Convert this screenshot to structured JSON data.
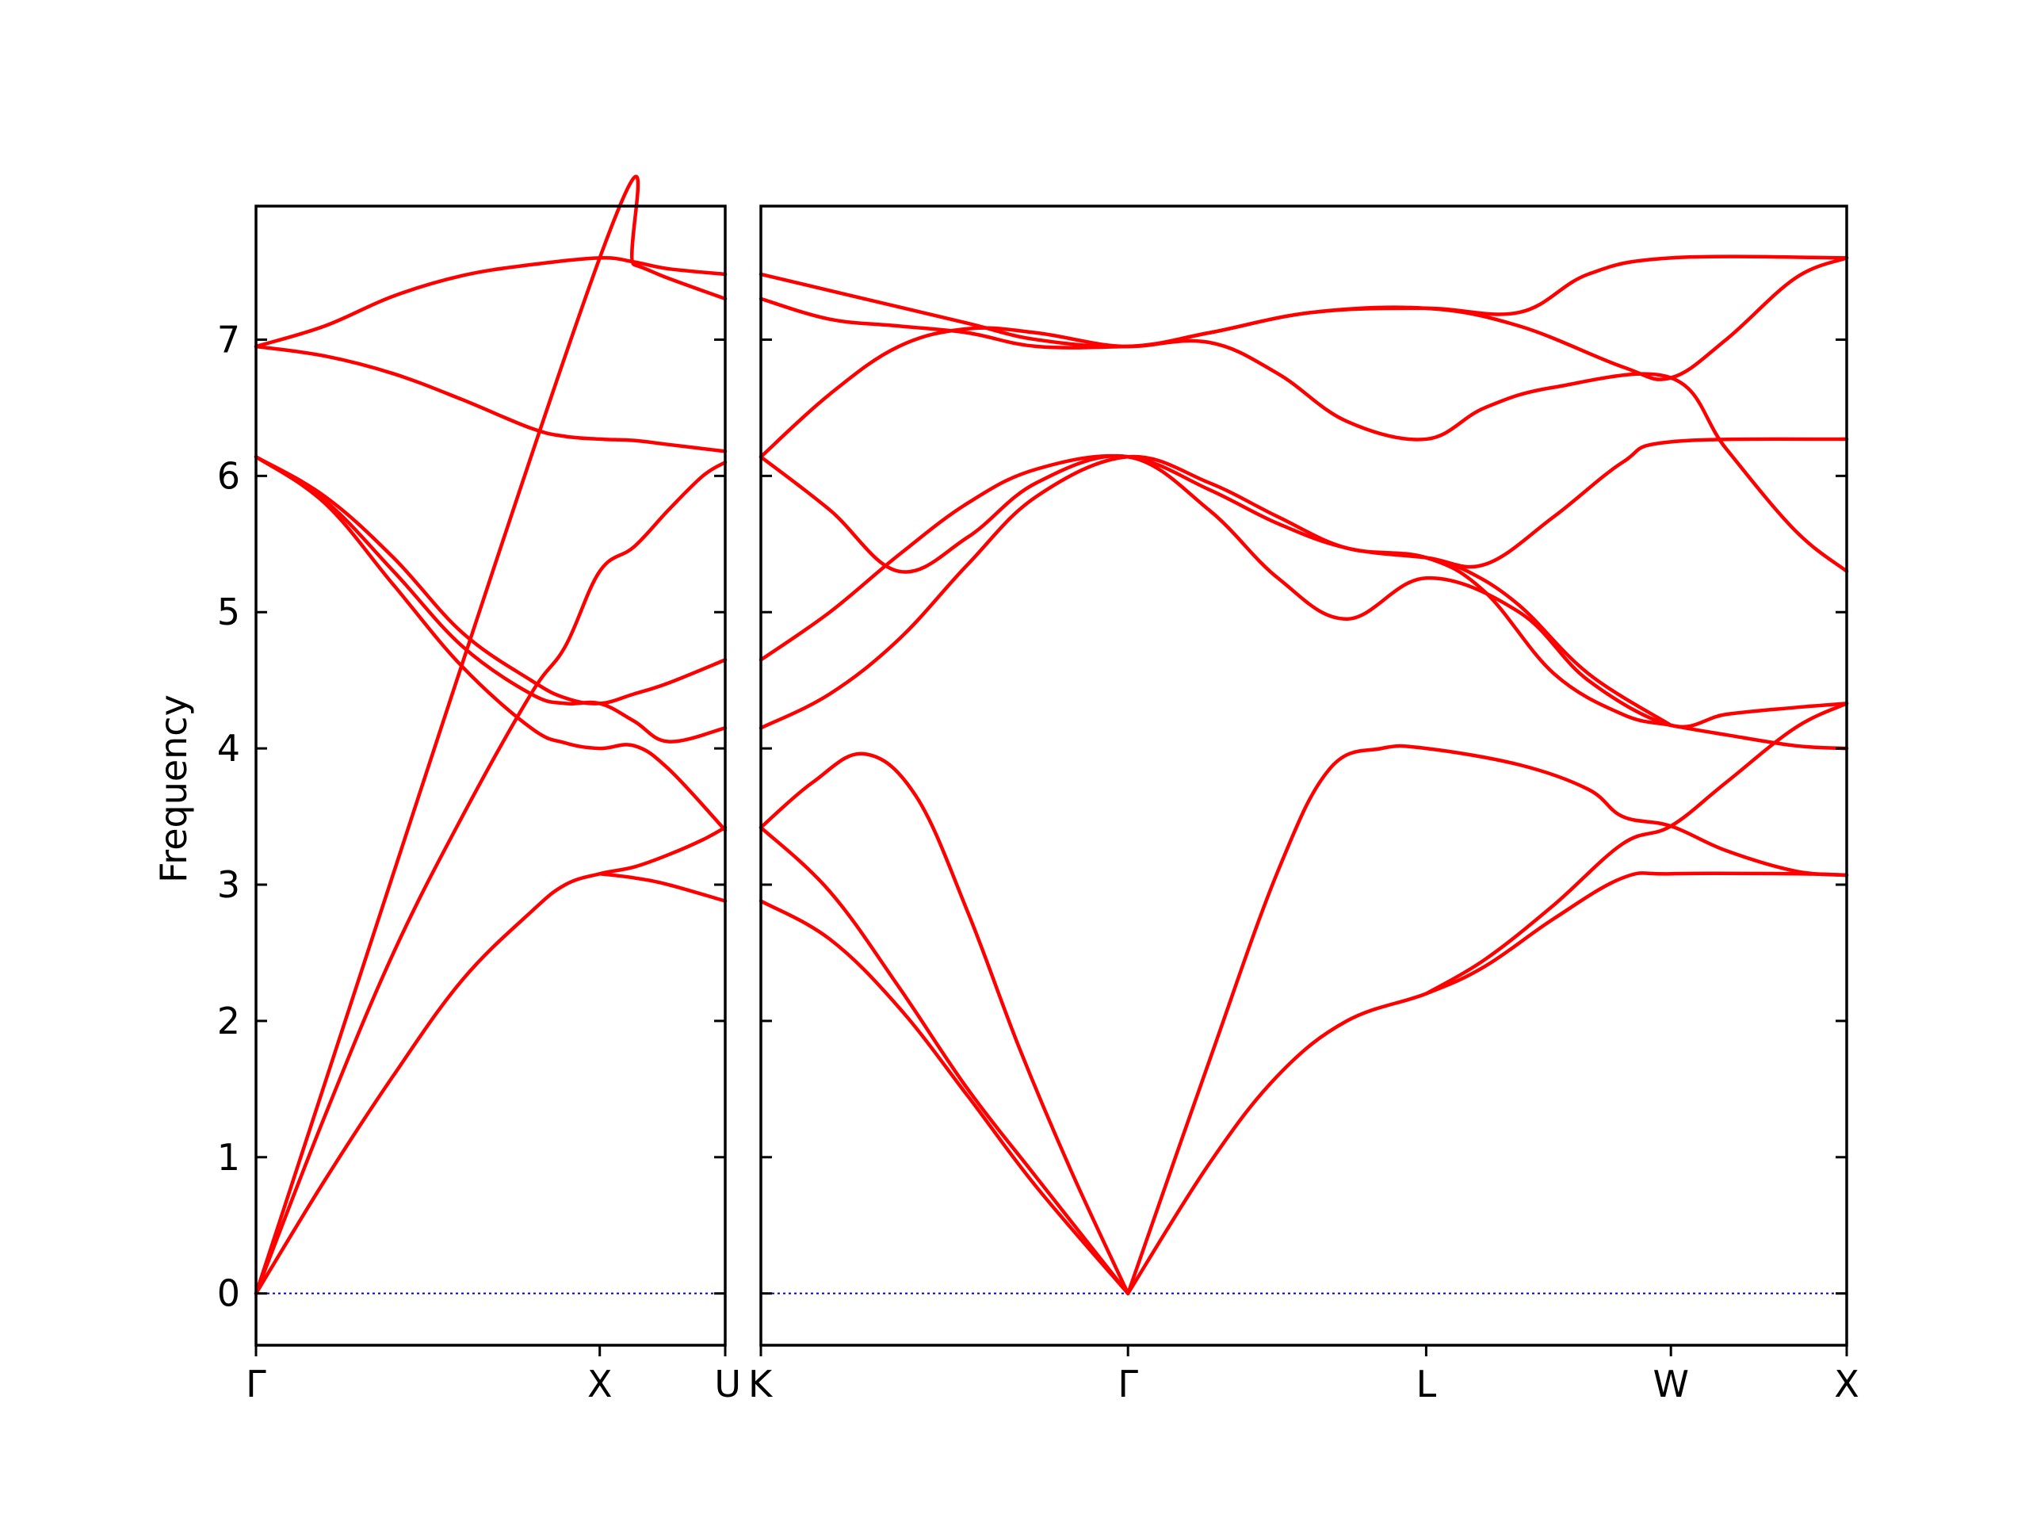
{
  "chart_data": {
    "type": "line",
    "title": "",
    "ylabel": "Frequency",
    "ylim": [
      -0.38,
      7.98
    ],
    "yticks": [
      0,
      1,
      2,
      3,
      4,
      5,
      6,
      7
    ],
    "grid": false,
    "colors": {
      "band": "#ff0000",
      "zero_line": "#0000cc"
    },
    "segments": [
      {
        "xlim": [
          0,
          1.365
        ],
        "xticks": [
          {
            "pos": 0,
            "label": "Γ"
          },
          {
            "pos": 1,
            "label": "X"
          },
          {
            "pos": 1.365,
            "label": "U"
          }
        ],
        "bands": [
          [
            [
              0,
              0
            ],
            [
              0.2,
              1.3
            ],
            [
              0.4,
              2.5
            ],
            [
              0.6,
              3.5
            ],
            [
              0.8,
              4.4
            ],
            [
              0.9,
              4.75
            ],
            [
              1,
              5.3
            ],
            [
              1.1,
              5.48
            ],
            [
              1.2,
              5.75
            ],
            [
              1.3,
              6.0
            ],
            [
              1.365,
              6.1
            ]
          ],
          [
            [
              0,
              0
            ],
            [
              0.2,
              0.83
            ],
            [
              0.4,
              1.6
            ],
            [
              0.6,
              2.3
            ],
            [
              0.8,
              2.8
            ],
            [
              0.9,
              3.0
            ],
            [
              1,
              3.08
            ],
            [
              1.1,
              3.13
            ],
            [
              1.2,
              3.22
            ],
            [
              1.3,
              3.33
            ],
            [
              1.365,
              3.42
            ]
          ],
          [
            [
              0,
              6.95
            ],
            [
              0.2,
              7.1
            ],
            [
              0.4,
              7.32
            ],
            [
              0.6,
              7.47
            ],
            [
              0.8,
              7.55
            ],
            [
              1,
              7.6
            ],
            [
              1.1,
              7.57
            ],
            [
              1.2,
              7.52
            ],
            [
              1.365,
              7.48
            ]
          ],
          [
            [
              0,
              6.95
            ],
            [
              0.2,
              6.88
            ],
            [
              0.4,
              6.75
            ],
            [
              0.6,
              6.56
            ],
            [
              0.8,
              6.35
            ],
            [
              0.9,
              6.29
            ],
            [
              1,
              6.27
            ],
            [
              1.1,
              6.26
            ],
            [
              1.2,
              6.23
            ],
            [
              1.365,
              6.18
            ]
          ],
          [
            [
              0,
              6.14
            ],
            [
              0.2,
              5.85
            ],
            [
              0.4,
              5.4
            ],
            [
              0.6,
              4.85
            ],
            [
              0.8,
              4.5
            ],
            [
              0.9,
              4.37
            ],
            [
              1,
              4.33
            ],
            [
              1.1,
              4.4
            ],
            [
              1.2,
              4.48
            ],
            [
              1.365,
              4.65
            ]
          ],
          [
            [
              0,
              6.14
            ],
            [
              0.2,
              5.8
            ],
            [
              0.4,
              5.2
            ],
            [
              0.6,
              4.6
            ],
            [
              0.8,
              4.15
            ],
            [
              0.9,
              4.04
            ],
            [
              1,
              4.0
            ],
            [
              1.1,
              4.02
            ],
            [
              1.2,
              3.85
            ],
            [
              1.365,
              3.4
            ]
          ],
          [
            [
              0,
              6.14
            ],
            [
              0.2,
              5.82
            ],
            [
              0.4,
              5.3
            ],
            [
              0.6,
              4.75
            ],
            [
              0.8,
              4.4
            ],
            [
              0.9,
              4.33
            ],
            [
              1,
              4.33
            ],
            [
              1.1,
              4.2
            ],
            [
              1.2,
              4.05
            ],
            [
              1.365,
              4.15
            ]
          ],
          [
            [
              0,
              0
            ],
            [
              1,
              7.6
            ],
            [
              1.1,
              7.55
            ],
            [
              1.2,
              7.45
            ],
            [
              1.365,
              7.3
            ]
          ],
          [
            [
              1,
              3.08
            ],
            [
              1.1,
              3.05
            ],
            [
              1.2,
              3.0
            ],
            [
              1.365,
              2.88
            ]
          ]
        ],
        "zero_line": true
      },
      {
        "xlim": [
          0,
          3.15
        ],
        "xticks": [
          {
            "pos": 0,
            "label": "K"
          },
          {
            "pos": 1.065,
            "label": "Γ"
          },
          {
            "pos": 1.93,
            "label": "L"
          },
          {
            "pos": 2.64,
            "label": "W"
          },
          {
            "pos": 3.15,
            "label": "X"
          }
        ],
        "bands": [
          [
            [
              0,
              3.42
            ],
            [
              0.15,
              3.75
            ],
            [
              0.3,
              3.96
            ],
            [
              0.45,
              3.65
            ],
            [
              0.6,
              2.8
            ],
            [
              0.75,
              1.8
            ],
            [
              0.9,
              0.9
            ],
            [
              1.065,
              0
            ]
          ],
          [
            [
              0,
              3.42
            ],
            [
              0.2,
              2.95
            ],
            [
              0.4,
              2.25
            ],
            [
              0.6,
              1.5
            ],
            [
              0.8,
              0.85
            ],
            [
              1.065,
              0
            ]
          ],
          [
            [
              0,
              2.88
            ],
            [
              0.2,
              2.6
            ],
            [
              0.4,
              2.1
            ],
            [
              0.6,
              1.45
            ],
            [
              0.8,
              0.78
            ],
            [
              1.065,
              0
            ]
          ],
          [
            [
              1.065,
              0
            ],
            [
              1.3,
              1.7
            ],
            [
              1.5,
              3.1
            ],
            [
              1.65,
              3.85
            ],
            [
              1.8,
              4.0
            ],
            [
              1.93,
              4.0
            ],
            [
              2.2,
              3.88
            ],
            [
              2.4,
              3.7
            ],
            [
              2.5,
              3.5
            ],
            [
              2.64,
              3.43
            ],
            [
              2.8,
              3.25
            ],
            [
              3.0,
              3.1
            ],
            [
              3.15,
              3.07
            ]
          ],
          [
            [
              1.065,
              0
            ],
            [
              1.3,
              0.95
            ],
            [
              1.5,
              1.6
            ],
            [
              1.7,
              2.0
            ],
            [
              1.93,
              2.2
            ],
            [
              2.1,
              2.4
            ],
            [
              2.3,
              2.75
            ],
            [
              2.5,
              3.05
            ],
            [
              2.64,
              3.08
            ],
            [
              3.0,
              3.08
            ],
            [
              3.15,
              3.07
            ]
          ],
          [
            [
              1.93,
              2.2
            ],
            [
              2.1,
              2.45
            ],
            [
              2.3,
              2.85
            ],
            [
              2.5,
              3.3
            ],
            [
              2.64,
              3.43
            ],
            [
              2.8,
              3.75
            ],
            [
              3.0,
              4.15
            ],
            [
              3.15,
              4.33
            ]
          ],
          [
            [
              0,
              6.14
            ],
            [
              0.2,
              6.6
            ],
            [
              0.4,
              6.95
            ],
            [
              0.6,
              7.08
            ],
            [
              0.8,
              7.05
            ],
            [
              1.065,
              6.95
            ],
            [
              1.3,
              7.05
            ],
            [
              1.6,
              7.2
            ],
            [
              1.93,
              7.23
            ],
            [
              2.2,
              7.1
            ],
            [
              2.5,
              6.8
            ],
            [
              2.64,
              6.72
            ],
            [
              2.8,
              7.0
            ],
            [
              3.0,
              7.45
            ],
            [
              3.15,
              7.6
            ]
          ],
          [
            [
              0,
              7.3
            ],
            [
              0.2,
              7.15
            ],
            [
              0.4,
              7.1
            ],
            [
              0.6,
              7.05
            ],
            [
              0.8,
              6.95
            ],
            [
              1.065,
              6.95
            ],
            [
              1.3,
              6.98
            ],
            [
              1.5,
              6.75
            ],
            [
              1.7,
              6.4
            ],
            [
              1.93,
              6.27
            ],
            [
              2.1,
              6.5
            ],
            [
              2.3,
              6.65
            ],
            [
              2.64,
              6.72
            ],
            [
              2.8,
              6.2
            ],
            [
              3.0,
              5.6
            ],
            [
              3.15,
              5.3
            ]
          ],
          [
            [
              0,
              7.48
            ],
            [
              0.3,
              7.3
            ],
            [
              0.6,
              7.12
            ],
            [
              0.8,
              7.0
            ],
            [
              1.065,
              6.95
            ],
            [
              1.3,
              7.05
            ],
            [
              1.6,
              7.2
            ],
            [
              1.93,
              7.23
            ],
            [
              2.2,
              7.2
            ],
            [
              2.4,
              7.48
            ],
            [
              2.64,
              7.6
            ],
            [
              3.15,
              7.6
            ]
          ],
          [
            [
              0,
              6.14
            ],
            [
              0.2,
              5.75
            ],
            [
              0.4,
              5.3
            ],
            [
              0.6,
              5.55
            ],
            [
              0.8,
              5.95
            ],
            [
              1.065,
              6.14
            ],
            [
              1.3,
              5.75
            ],
            [
              1.5,
              5.25
            ],
            [
              1.7,
              4.95
            ],
            [
              1.93,
              5.25
            ],
            [
              2.2,
              5.0
            ],
            [
              2.4,
              4.5
            ],
            [
              2.64,
              4.17
            ],
            [
              2.8,
              4.25
            ],
            [
              3.0,
              4.3
            ],
            [
              3.15,
              4.33
            ]
          ],
          [
            [
              0,
              4.65
            ],
            [
              0.2,
              5.0
            ],
            [
              0.4,
              5.42
            ],
            [
              0.6,
              5.8
            ],
            [
              0.8,
              6.05
            ],
            [
              1.065,
              6.14
            ],
            [
              1.3,
              5.9
            ],
            [
              1.5,
              5.65
            ],
            [
              1.7,
              5.47
            ],
            [
              1.93,
              5.4
            ],
            [
              2.1,
              5.35
            ],
            [
              2.3,
              5.7
            ],
            [
              2.5,
              6.1
            ],
            [
              2.64,
              6.25
            ],
            [
              3.15,
              6.27
            ]
          ],
          [
            [
              0,
              4.15
            ],
            [
              0.2,
              4.4
            ],
            [
              0.4,
              4.8
            ],
            [
              0.6,
              5.35
            ],
            [
              0.8,
              5.85
            ],
            [
              1.065,
              6.14
            ],
            [
              1.3,
              5.95
            ],
            [
              1.5,
              5.7
            ],
            [
              1.7,
              5.47
            ],
            [
              1.93,
              5.4
            ],
            [
              2.1,
              5.15
            ],
            [
              2.3,
              4.55
            ],
            [
              2.5,
              4.25
            ],
            [
              2.64,
              4.17
            ],
            [
              2.8,
              4.1
            ],
            [
              3.0,
              4.02
            ],
            [
              3.15,
              4.0
            ]
          ],
          [
            [
              1.93,
              5.4
            ],
            [
              2.05,
              5.3
            ],
            [
              2.2,
              5.05
            ],
            [
              2.4,
              4.55
            ],
            [
              2.64,
              4.17
            ]
          ]
        ],
        "zero_line": true
      }
    ]
  }
}
